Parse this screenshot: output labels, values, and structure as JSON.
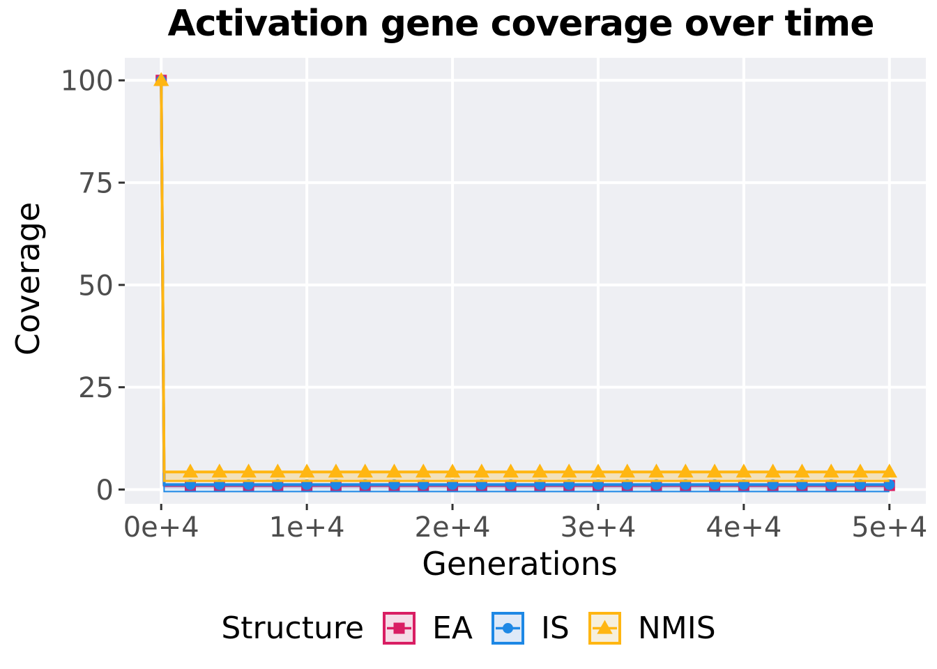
{
  "chart_data": {
    "type": "line",
    "title": "Activation gene coverage over time",
    "xlabel": "Generations",
    "ylabel": "Coverage",
    "legend": {
      "title": "Structure",
      "position": "bottom"
    },
    "grid": "major-only",
    "colors": {
      "panel_bg": "#EEEFF3",
      "grid": "#FFFFFF",
      "axis_text": "#4D4D4D",
      "tick_mark": "#333333",
      "axis_title": "#000000"
    },
    "xlim": [
      -2500,
      52500
    ],
    "ylim": [
      -3.5,
      105.5
    ],
    "x_ticks": {
      "values": [
        0,
        10000,
        20000,
        30000,
        40000,
        50000
      ],
      "labels": [
        "0e+4",
        "1e+4",
        "2e+4",
        "3e+4",
        "4e+4",
        "5e+4"
      ]
    },
    "y_ticks": {
      "values": [
        0,
        25,
        50,
        75,
        100
      ],
      "labels": [
        "0",
        "25",
        "50",
        "75",
        "100"
      ]
    },
    "x": [
      0,
      200,
      2000,
      4000,
      6000,
      8000,
      10000,
      12000,
      14000,
      16000,
      18000,
      20000,
      22000,
      24000,
      26000,
      28000,
      30000,
      32000,
      34000,
      36000,
      38000,
      40000,
      42000,
      44000,
      46000,
      48000,
      50000
    ],
    "marker_x": [
      0,
      2000,
      4000,
      6000,
      8000,
      10000,
      12000,
      14000,
      16000,
      18000,
      20000,
      22000,
      24000,
      26000,
      28000,
      30000,
      32000,
      34000,
      36000,
      38000,
      40000,
      42000,
      44000,
      46000,
      48000,
      50000
    ],
    "series": [
      {
        "name": "EA",
        "marker": "square",
        "color": "#D91E63",
        "key_fill": "#F5DCE7",
        "ribbon_fill": "rgba(217,30,99,0.14)",
        "ribbon_lower_offset": 0.7,
        "ribbon_edge_width": 0,
        "values": [
          100,
          1,
          1,
          1,
          1,
          1,
          1,
          1,
          1,
          1,
          1,
          1,
          1,
          1,
          1,
          1,
          1,
          1,
          1,
          1,
          1,
          1,
          1,
          1,
          1,
          1,
          1
        ]
      },
      {
        "name": "IS",
        "marker": "circle",
        "color": "#1E88E5",
        "key_fill": "#DEE9F8",
        "ribbon_fill": "rgba(30,136,229,0.16)",
        "ribbon_lower_offset": 1.7,
        "ribbon_edge_width": 2,
        "values": [
          100,
          1.2,
          1.2,
          1.2,
          1.2,
          1.2,
          1.2,
          1.2,
          1.2,
          1.2,
          1.2,
          1.2,
          1.2,
          1.2,
          1.2,
          1.2,
          1.2,
          1.2,
          1.2,
          1.2,
          1.2,
          1.2,
          1.2,
          1.2,
          1.2,
          1.2,
          1.2
        ]
      },
      {
        "name": "NMIS",
        "marker": "triangle",
        "color": "#FFB612",
        "key_fill": "#F6EFDC",
        "ribbon_fill": "rgba(255,182,18,0.25)",
        "ribbon_lower_offset": 2.2,
        "ribbon_edge_width": 3,
        "values": [
          100,
          4.3,
          4.3,
          4.3,
          4.3,
          4.3,
          4.3,
          4.3,
          4.3,
          4.3,
          4.3,
          4.3,
          4.3,
          4.3,
          4.3,
          4.3,
          4.3,
          4.3,
          4.3,
          4.3,
          4.3,
          4.3,
          4.3,
          4.3,
          4.3,
          4.3,
          4.3
        ]
      }
    ]
  }
}
